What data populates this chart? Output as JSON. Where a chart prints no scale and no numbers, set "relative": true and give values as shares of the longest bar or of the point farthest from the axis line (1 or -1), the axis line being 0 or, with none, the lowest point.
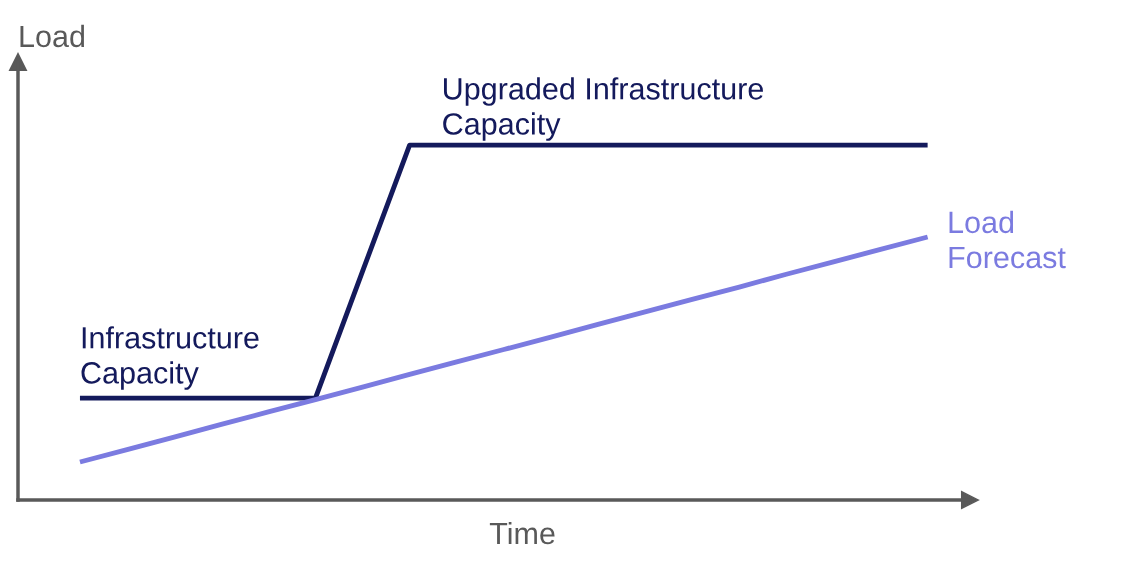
{
  "chart_data": {
    "type": "line",
    "relative": true,
    "xlabel": "Time",
    "ylabel": "Load",
    "marker": "none",
    "line_style": "solid",
    "categories": [
      null,
      null,
      null,
      null,
      null,
      null,
      null,
      null,
      null,
      null,
      null,
      null,
      null,
      null,
      null,
      null,
      null,
      null,
      null
    ],
    "series": [
      {
        "name": "Infrastructure Capacity",
        "color": "#141a5c",
        "values": [
          0.287,
          0.287,
          0.287,
          0.287,
          0.287,
          0.287,
          0.644,
          1,
          1,
          1,
          1,
          1,
          1,
          1,
          1,
          1,
          1,
          1,
          1
        ]
      },
      {
        "name": "Load Forecast",
        "color": "#7b7be0",
        "values": [
          0.107,
          0.142,
          0.177,
          0.213,
          0.248,
          0.283,
          0.318,
          0.354,
          0.389,
          0.424,
          0.459,
          0.495,
          0.53,
          0.565,
          0.6,
          0.636,
          0.671,
          0.706,
          0.741
        ]
      }
    ],
    "annotations": [
      "Upgraded Infrastructure Capacity"
    ]
  }
}
